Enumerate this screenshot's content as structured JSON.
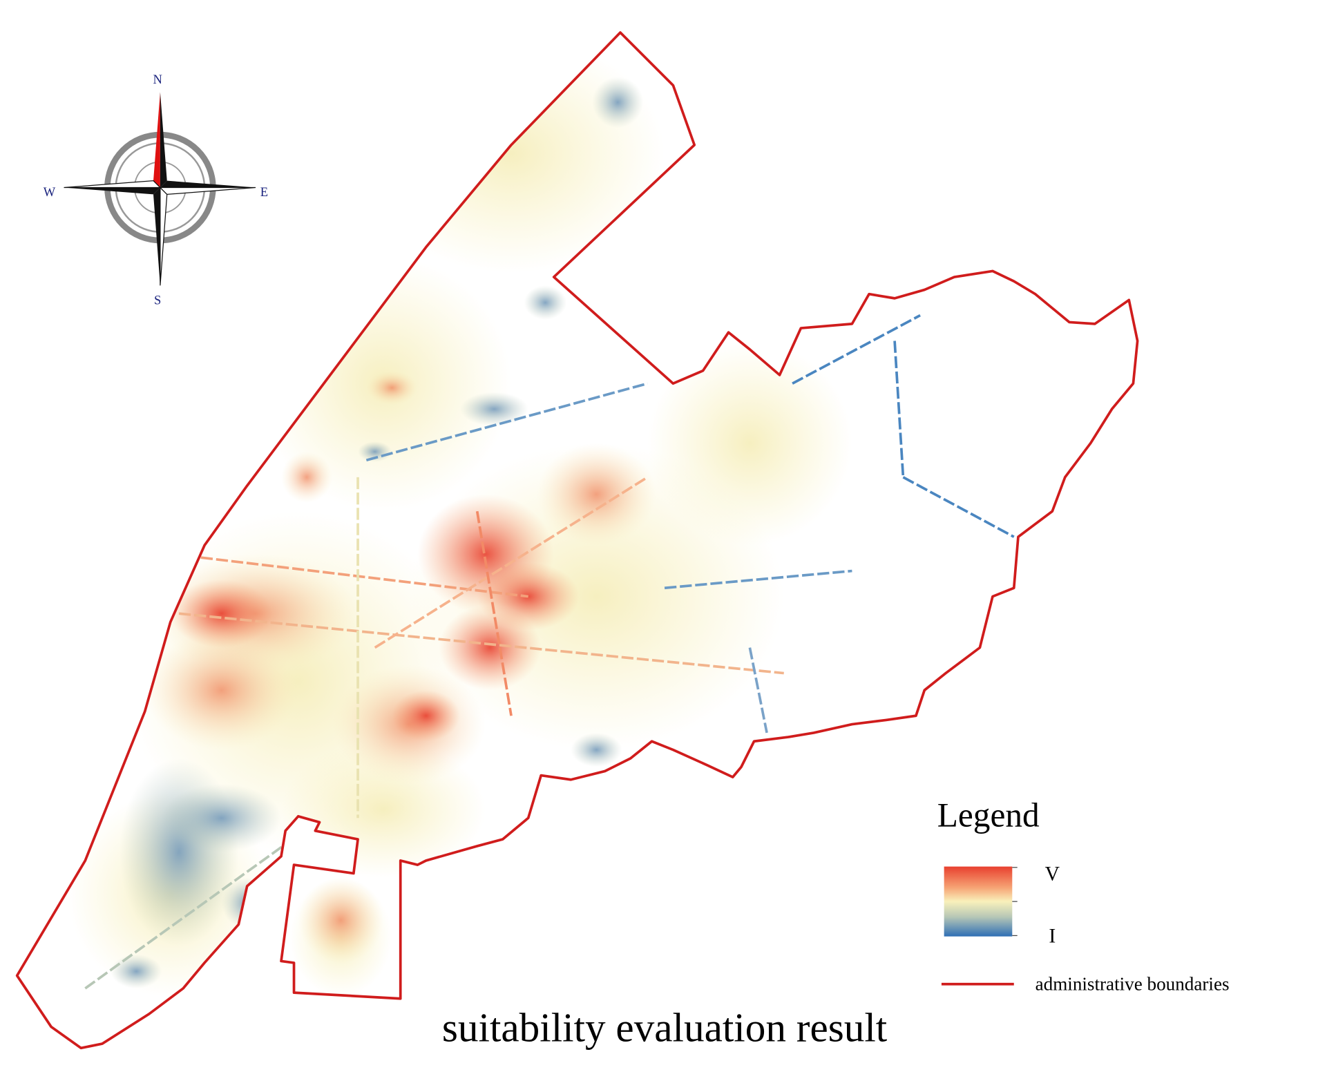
{
  "compass": {
    "north": "N",
    "south": "S",
    "east": "E",
    "west": "W"
  },
  "legend": {
    "title": "Legend",
    "gradient_high": "V",
    "gradient_low": "I",
    "boundary": "administrative boundaries"
  },
  "title": "suitability evaluation result"
}
